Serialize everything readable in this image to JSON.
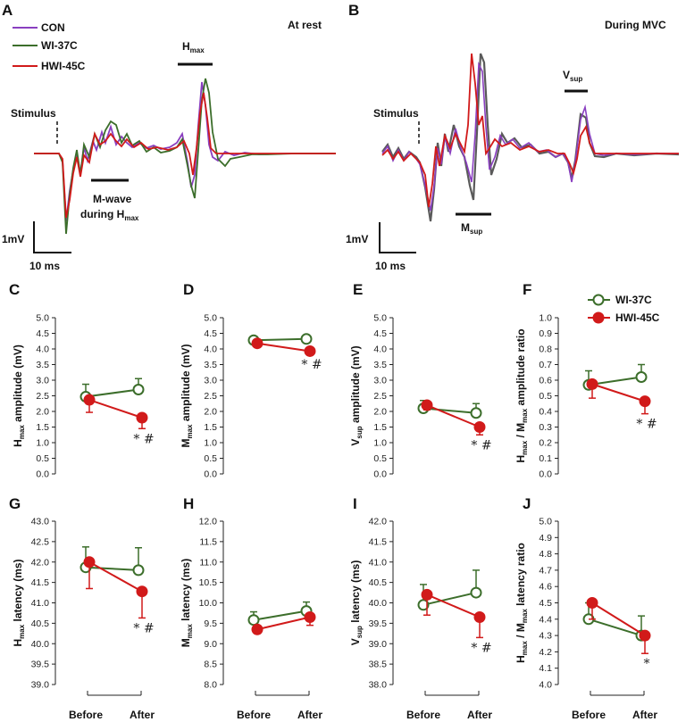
{
  "traces": {
    "A": {
      "letter": "A",
      "condition": "At rest",
      "legend": [
        "CON",
        "WI-37C",
        "HWI-45C"
      ],
      "stimulus_label": "Stimulus",
      "h_label": "H",
      "h_sub": "max",
      "m_label_line1": "M-wave",
      "m_label_line2": "during H",
      "m_label_sub": "max",
      "scale_v": "1mV",
      "scale_t": "10 ms"
    },
    "B": {
      "letter": "B",
      "condition": "During MVC",
      "stimulus_label": "Stimulus",
      "v_label": "V",
      "v_sub": "sup",
      "m_label": "M",
      "m_sub": "sup",
      "scale_v": "1mV",
      "scale_t": "10 ms"
    }
  },
  "colors": {
    "CON": "#8a3fc0",
    "WI": "#3c6e2b",
    "HWI": "#d11a1a",
    "grey": "#5a5a5a"
  },
  "legend_CF": [
    "WI-37C",
    "HWI-45C"
  ],
  "chart_data": [
    {
      "id": "C",
      "type": "line",
      "ylabel_main": "H",
      "ylabel_sub": "max",
      "ylabel_rest": " amplitude (mV)",
      "ylim": [
        0,
        5
      ],
      "ticks": [
        "0.0",
        "0.5",
        "1.0",
        "1.5",
        "2.0",
        "2.5",
        "3.0",
        "3.5",
        "4.0",
        "4.5",
        "5.0"
      ],
      "categories": [
        "Before",
        "After"
      ],
      "series": [
        {
          "name": "WI-37C",
          "values": [
            2.47,
            2.7
          ],
          "err": [
            0.4,
            0.35
          ]
        },
        {
          "name": "HWI-45C",
          "values": [
            2.37,
            1.8
          ],
          "err": [
            0.4,
            0.35
          ]
        }
      ],
      "annotation": "* #"
    },
    {
      "id": "D",
      "type": "line",
      "ylabel_main": "M",
      "ylabel_sub": "max",
      "ylabel_rest": " amplitude (mV)",
      "ylim": [
        0,
        5
      ],
      "ticks": [
        "0.0",
        "0.5",
        "1.0",
        "1.5",
        "2.0",
        "2.5",
        "3.0",
        "3.5",
        "4.0",
        "4.5",
        "5.0"
      ],
      "categories": [
        "Before",
        "After"
      ],
      "series": [
        {
          "name": "WI-37C",
          "values": [
            4.28,
            4.32
          ],
          "err": [
            0.12,
            0.12
          ]
        },
        {
          "name": "HWI-45C",
          "values": [
            4.18,
            3.93
          ],
          "err": [
            0.12,
            0.1
          ]
        }
      ],
      "annotation": "* #"
    },
    {
      "id": "E",
      "type": "line",
      "ylabel_main": "V",
      "ylabel_sub": "sup",
      "ylabel_rest": " amplitude (mV)",
      "ylim": [
        0,
        5
      ],
      "ticks": [
        "0.0",
        "0.5",
        "1.0",
        "1.5",
        "2.0",
        "2.5",
        "3.0",
        "3.5",
        "4.0",
        "4.5",
        "5.0"
      ],
      "categories": [
        "Before",
        "After"
      ],
      "series": [
        {
          "name": "WI-37C",
          "values": [
            2.1,
            1.95
          ],
          "err": [
            0.25,
            0.3
          ]
        },
        {
          "name": "HWI-45C",
          "values": [
            2.2,
            1.5
          ],
          "err": [
            0.15,
            0.25
          ]
        }
      ],
      "annotation": "* #"
    },
    {
      "id": "F",
      "type": "line",
      "ylabel_main": "H",
      "ylabel_sub": "max",
      "ylabel_rest": " / M",
      "ylabel_sub2": "max",
      "ylabel_rest2": " amplitude ratio",
      "ylim": [
        0,
        1
      ],
      "ticks": [
        "0.0",
        "0.1",
        "0.2",
        "0.3",
        "0.4",
        "0.5",
        "0.6",
        "0.7",
        "0.8",
        "0.9",
        "1.0"
      ],
      "categories": [
        "Before",
        "After"
      ],
      "series": [
        {
          "name": "WI-37C",
          "values": [
            0.57,
            0.62
          ],
          "err": [
            0.09,
            0.08
          ]
        },
        {
          "name": "HWI-45C",
          "values": [
            0.575,
            0.465
          ],
          "err": [
            0.09,
            0.08
          ]
        }
      ],
      "annotation": "* #"
    },
    {
      "id": "G",
      "type": "line",
      "ylabel_main": "H",
      "ylabel_sub": "max",
      "ylabel_rest": " latency (ms)",
      "ylim": [
        39,
        43
      ],
      "ticks": [
        "39.0",
        "39.5",
        "40.0",
        "40.5",
        "41.0",
        "41.5",
        "42.0",
        "42.5",
        "43.0"
      ],
      "categories": [
        "Before",
        "After"
      ],
      "series": [
        {
          "name": "WI-37C",
          "values": [
            41.87,
            41.8
          ],
          "err": [
            0.5,
            0.55
          ]
        },
        {
          "name": "HWI-45C",
          "values": [
            42.0,
            41.28
          ],
          "err": [
            0.65,
            0.65
          ]
        }
      ],
      "annotation": "* #"
    },
    {
      "id": "H",
      "type": "line",
      "ylabel_main": "M",
      "ylabel_sub": "max",
      "ylabel_rest": " latency (ms)",
      "ylim": [
        8,
        12
      ],
      "ticks": [
        "8.0",
        "8.5",
        "9.0",
        "9.5",
        "10.0",
        "10.5",
        "11.0",
        "11.5",
        "12.0"
      ],
      "categories": [
        "Before",
        "After"
      ],
      "series": [
        {
          "name": "WI-37C",
          "values": [
            9.58,
            9.8
          ],
          "err": [
            0.2,
            0.22
          ]
        },
        {
          "name": "HWI-45C",
          "values": [
            9.35,
            9.65
          ],
          "err": [
            0.08,
            0.2
          ]
        }
      ],
      "annotation": ""
    },
    {
      "id": "I",
      "type": "line",
      "ylabel_main": "V",
      "ylabel_sub": "sup",
      "ylabel_rest": " latency (ms)",
      "ylim": [
        38,
        42
      ],
      "ticks": [
        "38.0",
        "38.5",
        "39.0",
        "39.5",
        "40.0",
        "40.5",
        "41.0",
        "41.5",
        "42.0"
      ],
      "categories": [
        "Before",
        "After"
      ],
      "series": [
        {
          "name": "WI-37C",
          "values": [
            39.95,
            40.25
          ],
          "err": [
            0.5,
            0.55
          ]
        },
        {
          "name": "HWI-45C",
          "values": [
            40.2,
            39.65
          ],
          "err": [
            0.5,
            0.5
          ]
        }
      ],
      "annotation": "* #"
    },
    {
      "id": "J",
      "type": "line",
      "ylabel_main": "H",
      "ylabel_sub": "max",
      "ylabel_rest": " / M",
      "ylabel_sub2": "max",
      "ylabel_rest2": " latency ratio",
      "ylim": [
        4,
        5
      ],
      "ticks": [
        "4.0",
        "4.1",
        "4.2",
        "4.3",
        "4.4",
        "4.5",
        "4.6",
        "4.7",
        "4.8",
        "4.9",
        "5.0"
      ],
      "categories": [
        "Before",
        "After"
      ],
      "series": [
        {
          "name": "WI-37C",
          "values": [
            4.4,
            4.3
          ],
          "err": [
            0.1,
            0.12
          ]
        },
        {
          "name": "HWI-45C",
          "values": [
            4.5,
            4.3
          ],
          "err": [
            0.1,
            0.11
          ]
        }
      ],
      "annotation": "*"
    }
  ]
}
